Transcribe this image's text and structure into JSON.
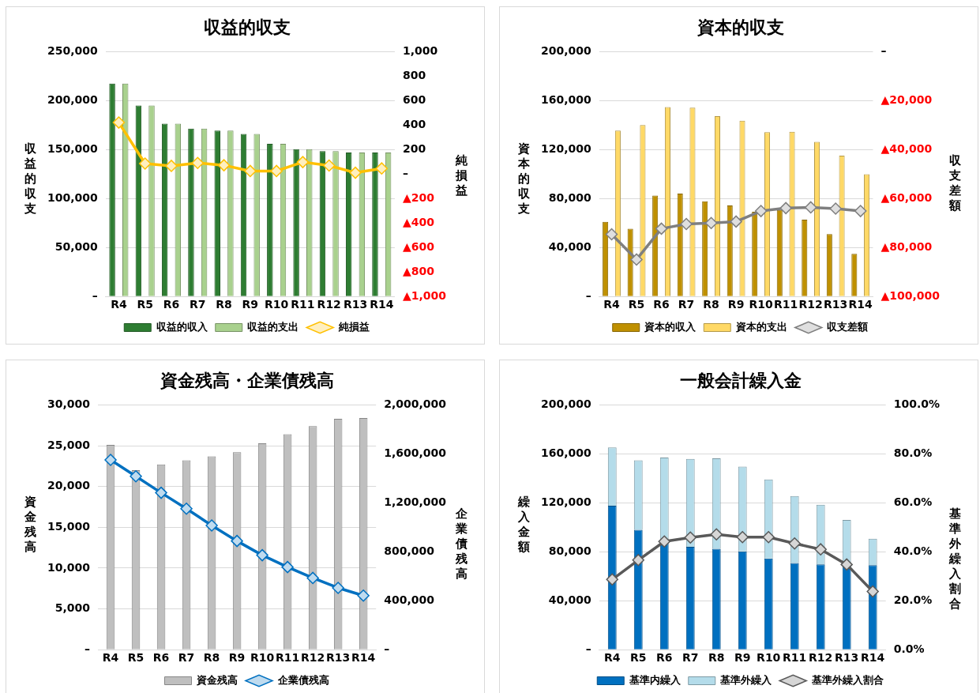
{
  "chart_data": [
    {
      "type": "bar",
      "title": "収益的収支",
      "ylabel": "収益的収支",
      "y2label": "純損益",
      "categories": [
        "R4",
        "R5",
        "R6",
        "R7",
        "R8",
        "R9",
        "R10",
        "R11",
        "R12",
        "R13",
        "R14"
      ],
      "series": [
        {
          "name": "収益的収入",
          "color": "#2e7d32",
          "values": [
            217500,
            195000,
            176500,
            171500,
            169500,
            166000,
            156000,
            150500,
            148500,
            147000,
            147000
          ]
        },
        {
          "name": "収益的支出",
          "color": "#a9d18e",
          "values": [
            217500,
            195000,
            176500,
            171500,
            169500,
            166000,
            156000,
            150500,
            148500,
            147000,
            147000
          ]
        },
        {
          "name": "純損益",
          "type": "line",
          "axis": "y2",
          "color": "#ffc000",
          "values": [
            421,
            86,
            67,
            91,
            72,
            25,
            25,
            98,
            70,
            11,
            46
          ]
        }
      ],
      "ylim": [
        0,
        250000
      ],
      "yticks": [
        {
          "value": 0,
          "label": "–"
        },
        {
          "value": 50000,
          "label": "50,000"
        },
        {
          "value": 100000,
          "label": "100,000"
        },
        {
          "value": 150000,
          "label": "150,000"
        },
        {
          "value": 200000,
          "label": "200,000"
        },
        {
          "value": 250000,
          "label": "250,000"
        }
      ],
      "y2lim": [
        -1000,
        1000
      ],
      "y2ticks": [
        {
          "value": -1000,
          "label": "▲1,000"
        },
        {
          "value": -800,
          "label": "▲800"
        },
        {
          "value": -600,
          "label": "▲600"
        },
        {
          "value": -400,
          "label": "▲400"
        },
        {
          "value": -200,
          "label": "▲200"
        },
        {
          "value": 0,
          "label": "–"
        },
        200,
        400,
        600,
        800,
        {
          "value": 1000,
          "label": "1,000"
        }
      ],
      "grid": "y",
      "legend": "bottom",
      "marker": "diamond"
    },
    {
      "type": "bar",
      "title": "資本的収支",
      "ylabel": "資本的収支",
      "y2label": "収支差額",
      "categories": [
        "R4",
        "R5",
        "R6",
        "R7",
        "R8",
        "R9",
        "R10",
        "R11",
        "R12",
        "R13",
        "R14"
      ],
      "series": [
        {
          "name": "資本的収入",
          "color": "#bf9000",
          "values": [
            60900,
            55300,
            82400,
            84100,
            77700,
            74400,
            69200,
            70700,
            62800,
            51000,
            34900
          ]
        },
        {
          "name": "資本的支出",
          "color": "#ffd966",
          "values": [
            135500,
            140000,
            154700,
            154200,
            147300,
            143600,
            134300,
            134600,
            126300,
            115000,
            99900
          ]
        },
        {
          "name": "収支差額",
          "type": "line",
          "axis": "y2",
          "color": "#7f7f7f",
          "values": [
            -74600,
            -84900,
            -72300,
            -70400,
            -70000,
            -69400,
            -65100,
            -63900,
            -63600,
            -64100,
            -65100
          ]
        }
      ],
      "ylim": [
        0,
        200000
      ],
      "yticks": [
        {
          "value": 0,
          "label": "–"
        },
        {
          "value": 40000,
          "label": "40,000"
        },
        {
          "value": 80000,
          "label": "80,000"
        },
        {
          "value": 120000,
          "label": "120,000"
        },
        {
          "value": 160000,
          "label": "160,000"
        },
        {
          "value": 200000,
          "label": "200,000"
        }
      ],
      "y2lim": [
        -100000,
        0
      ],
      "y2ticks": [
        {
          "value": -100000,
          "label": "▲100,000"
        },
        {
          "value": -80000,
          "label": "▲80,000"
        },
        {
          "value": -60000,
          "label": "▲60,000"
        },
        {
          "value": -40000,
          "label": "▲40,000"
        },
        {
          "value": -20000,
          "label": "▲20,000"
        },
        {
          "value": 0,
          "label": "–"
        }
      ],
      "grid": "y",
      "legend": "bottom",
      "marker": "diamond"
    },
    {
      "type": "bar",
      "title": "資金残高・企業債残高",
      "ylabel": "資金残高",
      "y2label": "企業債残高",
      "categories": [
        "R4",
        "R5",
        "R6",
        "R7",
        "R8",
        "R9",
        "R10",
        "R11",
        "R12",
        "R13",
        "R14"
      ],
      "series": [
        {
          "name": "資金残高",
          "color": "#bfbfbf",
          "values": [
            25100,
            22000,
            22700,
            23200,
            23700,
            24200,
            25300,
            26400,
            27400,
            28300,
            28400
          ]
        },
        {
          "name": "企業債残高",
          "type": "line",
          "axis": "y2",
          "color": "#0070c0",
          "values": [
            1551000,
            1417000,
            1282000,
            1152000,
            1015000,
            888000,
            772000,
            675000,
            586000,
            505000,
            442000
          ]
        }
      ],
      "ylim": [
        0,
        30000
      ],
      "yticks": [
        {
          "value": 0,
          "label": "–"
        },
        {
          "value": 5000,
          "label": "5,000"
        },
        {
          "value": 10000,
          "label": "10,000"
        },
        {
          "value": 15000,
          "label": "15,000"
        },
        {
          "value": 20000,
          "label": "20,000"
        },
        {
          "value": 25000,
          "label": "25,000"
        },
        {
          "value": 30000,
          "label": "30,000"
        }
      ],
      "y2lim": [
        0,
        2000000
      ],
      "y2ticks": [
        {
          "value": 0,
          "label": "–"
        },
        {
          "value": 400000,
          "label": "400,000"
        },
        {
          "value": 800000,
          "label": "800,000"
        },
        {
          "value": 1200000,
          "label": "1,200,000"
        },
        {
          "value": 1600000,
          "label": "1,600,000"
        },
        {
          "value": 2000000,
          "label": "2,000,000"
        }
      ],
      "grid": "y",
      "legend": "bottom",
      "marker": "diamond"
    },
    {
      "type": "bar",
      "title": "一般会計繰入金",
      "ylabel": "繰入金額",
      "y2label": "基準外繰入割合",
      "stacked": true,
      "categories": [
        "R4",
        "R5",
        "R6",
        "R7",
        "R8",
        "R9",
        "R10",
        "R11",
        "R12",
        "R13",
        "R14"
      ],
      "series": [
        {
          "name": "基準内繰入",
          "color": "#0070c0",
          "values": [
            117600,
            98000,
            87600,
            84100,
            82400,
            80300,
            74600,
            70800,
            69700,
            69100,
            69000
          ]
        },
        {
          "name": "基準外繰入",
          "color": "#b4dcea",
          "values": [
            47700,
            56700,
            69400,
            71700,
            73900,
            69200,
            64500,
            54800,
            48800,
            36900,
            21700
          ]
        },
        {
          "name": "基準外繰入割合",
          "type": "line",
          "axis": "y2",
          "color": "#595959",
          "values": [
            28.7,
            36.6,
            44.2,
            45.8,
            47.1,
            46.0,
            46.0,
            43.4,
            41.0,
            34.8,
            23.8
          ]
        }
      ],
      "ylim": [
        0,
        200000
      ],
      "yticks": [
        {
          "value": 0,
          "label": "–"
        },
        {
          "value": 40000,
          "label": "40,000"
        },
        {
          "value": 80000,
          "label": "80,000"
        },
        {
          "value": 120000,
          "label": "120,000"
        },
        {
          "value": 160000,
          "label": "160,000"
        },
        {
          "value": 200000,
          "label": "200,000"
        }
      ],
      "y2lim": [
        0,
        100
      ],
      "y2ticks": [
        {
          "value": 0,
          "label": "0.0%"
        },
        {
          "value": 20,
          "label": "20.0%"
        },
        {
          "value": 40,
          "label": "40.0%"
        },
        {
          "value": 60,
          "label": "60.0%"
        },
        {
          "value": 80,
          "label": "80.0%"
        },
        {
          "value": 100,
          "label": "100.0%"
        }
      ],
      "grid": "y",
      "legend": "bottom",
      "marker": "diamond"
    }
  ]
}
